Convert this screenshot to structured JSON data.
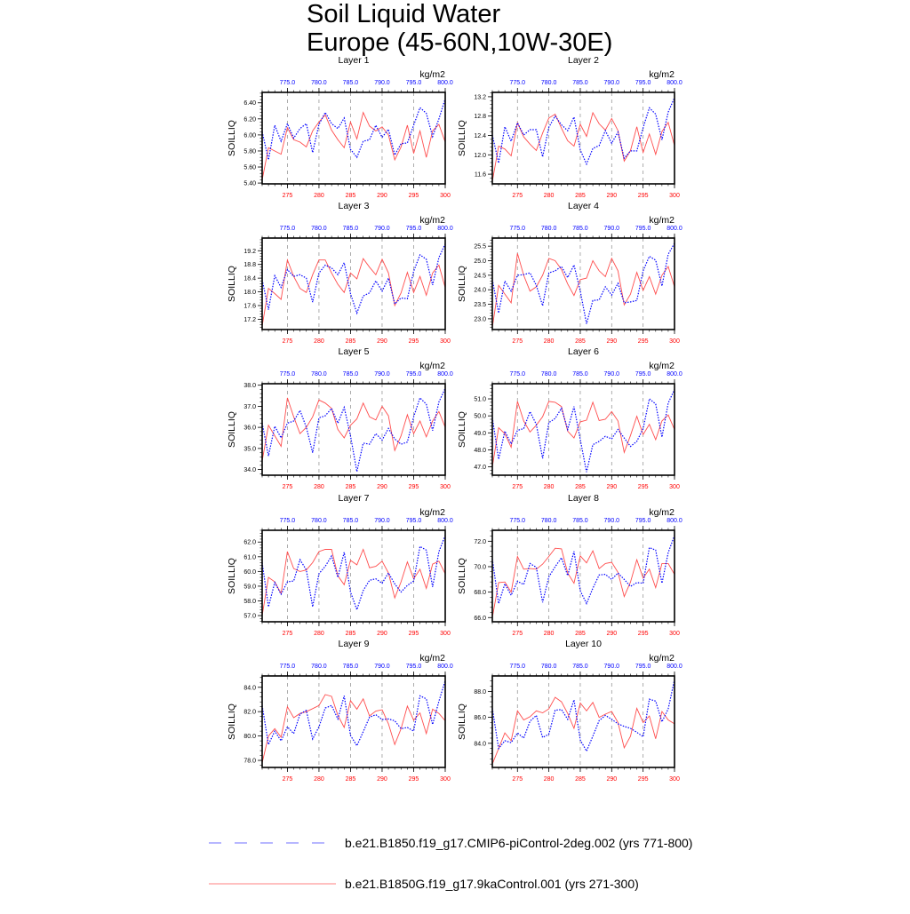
{
  "title": "Soil Liquid Water",
  "subtitle": "Europe (45-60N,10W-30E)",
  "colors": {
    "series_a": "#0000ff",
    "series_b": "#ff4d4d",
    "grid": "#999999",
    "axis": "#000000"
  },
  "legend": [
    {
      "label": "b.e21.B1850.f19_g17.CMIP6-piControl-2deg.002 (yrs 771-800)",
      "color": "#6f6fff",
      "style": "dashed"
    },
    {
      "label": "b.e21.B1850G.f19_g17.9kaControl.001 (yrs 271-300)",
      "color": "#ff8080",
      "style": "solid"
    }
  ],
  "chart_data": {
    "type": "line",
    "layout": "5 rows x 2 columns",
    "ylabel": "SOILLIQ",
    "units": "kg/m2",
    "x_bottom": {
      "range": [
        271,
        300
      ],
      "ticks": [
        "275",
        "280",
        "285",
        "290",
        "295",
        "300"
      ],
      "color": "#ff0000"
    },
    "x_top": {
      "range": [
        771,
        800
      ],
      "ticks": [
        "775.0",
        "780.0",
        "785.0",
        "790.0",
        "795.0",
        "800.0"
      ],
      "color": "#0000ff"
    },
    "grid": "vertical dashed at major x ticks",
    "panels": [
      {
        "title": "Layer 1",
        "ylim": [
          5.39,
          6.53
        ],
        "yticks": [
          "5.40",
          "5.60",
          "5.80",
          "6.00",
          "6.20",
          "6.40"
        ],
        "ytick_values": [
          5.4,
          5.6,
          5.8,
          6.0,
          6.2,
          6.4
        ],
        "red": [
          5.44,
          5.84,
          5.8,
          5.76,
          6.09,
          5.94,
          5.91,
          5.85,
          6.05,
          6.16,
          6.25,
          6.06,
          5.94,
          5.84,
          6.16,
          5.95,
          6.28,
          6.11,
          6.05,
          6.1,
          6.0,
          5.69,
          5.85,
          6.12,
          5.77,
          6.05,
          5.72,
          6.05,
          6.13,
          5.91
        ],
        "blue": [
          6.04,
          5.69,
          6.12,
          5.92,
          6.14,
          5.96,
          6.08,
          6.14,
          5.78,
          6.13,
          6.28,
          6.14,
          6.08,
          6.21,
          5.82,
          5.72,
          5.92,
          5.94,
          6.12,
          5.97,
          6.07,
          5.75,
          5.89,
          5.9,
          6.12,
          6.34,
          6.27,
          5.98,
          6.2,
          6.45
        ]
      },
      {
        "title": "Layer 2",
        "ylim": [
          11.4,
          13.29
        ],
        "yticks": [
          "11.6",
          "12.0",
          "12.4",
          "12.8",
          "13.2"
        ],
        "ytick_values": [
          11.6,
          12.0,
          12.4,
          12.8,
          13.2
        ],
        "red": [
          11.45,
          12.18,
          12.12,
          11.98,
          12.66,
          12.37,
          12.22,
          12.09,
          12.45,
          12.76,
          12.84,
          12.55,
          12.29,
          12.18,
          12.63,
          12.38,
          12.87,
          12.64,
          12.51,
          12.75,
          12.5,
          11.87,
          12.09,
          12.58,
          12.05,
          12.43,
          12.01,
          12.48,
          12.67,
          12.19
        ],
        "blue": [
          12.41,
          11.83,
          12.58,
          12.28,
          12.66,
          12.41,
          12.52,
          12.52,
          11.96,
          12.57,
          12.8,
          12.62,
          12.5,
          12.78,
          12.1,
          11.81,
          12.13,
          12.19,
          12.5,
          12.24,
          12.47,
          11.93,
          12.08,
          12.08,
          12.56,
          12.97,
          12.84,
          12.31,
          12.88,
          13.18
        ]
      },
      {
        "title": "Layer 3",
        "ylim": [
          16.9,
          19.57
        ],
        "yticks": [
          "17.2",
          "17.6",
          "18.0",
          "18.4",
          "18.8",
          "19.2"
        ],
        "ytick_values": [
          17.2,
          17.6,
          18.0,
          18.4,
          18.8,
          19.2
        ],
        "red": [
          17.0,
          18.1,
          17.95,
          17.78,
          18.93,
          18.45,
          18.1,
          17.98,
          18.5,
          18.93,
          18.93,
          18.55,
          18.22,
          17.98,
          18.55,
          18.38,
          18.97,
          18.72,
          18.5,
          18.95,
          18.55,
          17.6,
          17.97,
          18.57,
          17.98,
          18.45,
          17.9,
          18.55,
          18.78,
          18.12
        ],
        "blue": [
          18.35,
          17.48,
          18.47,
          18.13,
          18.65,
          18.45,
          18.5,
          18.4,
          17.7,
          18.55,
          18.78,
          18.7,
          18.5,
          18.85,
          17.95,
          17.38,
          17.88,
          17.97,
          18.32,
          18.02,
          18.4,
          17.65,
          17.82,
          17.8,
          18.6,
          19.08,
          18.95,
          18.2,
          19.0,
          19.4
        ]
      },
      {
        "title": "Layer 4",
        "ylim": [
          22.63,
          25.78
        ],
        "yticks": [
          "23.0",
          "23.5",
          "24.0",
          "24.5",
          "25.0",
          "25.5"
        ],
        "ytick_values": [
          23.0,
          23.5,
          24.0,
          24.5,
          25.0,
          25.5
        ],
        "red": [
          22.7,
          24.15,
          23.85,
          23.55,
          25.25,
          24.5,
          23.95,
          24.1,
          24.5,
          25.08,
          25.0,
          24.7,
          24.2,
          23.8,
          24.35,
          24.4,
          25.0,
          24.65,
          24.45,
          25.08,
          24.65,
          23.48,
          23.85,
          24.6,
          23.98,
          24.45,
          23.85,
          24.5,
          24.8,
          24.1
        ],
        "blue": [
          24.35,
          23.2,
          24.3,
          23.95,
          24.5,
          24.52,
          24.58,
          24.15,
          23.45,
          24.58,
          24.65,
          24.8,
          24.42,
          24.85,
          23.95,
          22.83,
          23.63,
          23.65,
          24.1,
          23.82,
          24.22,
          23.55,
          23.58,
          23.63,
          24.65,
          25.15,
          25.02,
          24.13,
          25.22,
          25.6
        ]
      },
      {
        "title": "Layer 5",
        "ylim": [
          33.73,
          38.07
        ],
        "yticks": [
          "34.0",
          "35.0",
          "36.0",
          "37.0",
          "38.0"
        ],
        "ytick_values": [
          34,
          35,
          36,
          37,
          38
        ],
        "red": [
          34.4,
          36.1,
          35.6,
          35.1,
          37.4,
          36.5,
          35.7,
          36.0,
          36.5,
          37.3,
          37.15,
          36.9,
          35.9,
          35.5,
          36.1,
          36.4,
          37.15,
          36.5,
          36.35,
          37.0,
          36.55,
          34.9,
          35.6,
          36.6,
          35.7,
          36.3,
          35.55,
          36.3,
          36.75,
          36.0
        ],
        "blue": [
          36.2,
          34.65,
          36.05,
          35.5,
          36.2,
          36.3,
          36.8,
          36.0,
          34.8,
          36.45,
          36.55,
          36.9,
          36.2,
          36.95,
          35.6,
          33.9,
          35.25,
          35.2,
          35.7,
          35.4,
          35.95,
          35.45,
          35.2,
          35.3,
          36.5,
          37.4,
          37.1,
          35.85,
          37.2,
          37.85
        ]
      },
      {
        "title": "Layer 6",
        "ylim": [
          46.51,
          51.89
        ],
        "yticks": [
          "47.0",
          "48.0",
          "49.0",
          "50.0",
          "51.0"
        ],
        "ytick_values": [
          47,
          48,
          49,
          50,
          51
        ],
        "red": [
          47.0,
          49.3,
          48.95,
          48.15,
          50.85,
          49.7,
          49.05,
          49.45,
          49.95,
          50.85,
          50.8,
          50.55,
          49.1,
          48.7,
          49.65,
          49.75,
          50.8,
          49.72,
          49.8,
          50.25,
          49.7,
          47.85,
          48.85,
          49.98,
          48.9,
          49.5,
          48.6,
          49.7,
          50.05,
          49.2
        ],
        "blue": [
          49.9,
          47.45,
          49.1,
          48.35,
          49.15,
          49.25,
          50.25,
          49.5,
          47.5,
          49.6,
          49.85,
          50.45,
          49.2,
          50.55,
          48.6,
          46.7,
          48.3,
          48.5,
          48.8,
          48.65,
          49.2,
          48.7,
          48.2,
          48.5,
          49.25,
          51.0,
          50.7,
          48.75,
          50.75,
          51.55
        ]
      },
      {
        "title": "Layer 7",
        "ylim": [
          56.58,
          62.8
        ],
        "yticks": [
          "57.0",
          "58.0",
          "59.0",
          "60.0",
          "61.0",
          "62.0"
        ],
        "ytick_values": [
          57,
          58,
          59,
          60,
          61,
          62
        ],
        "red": [
          57.0,
          59.6,
          59.3,
          58.5,
          61.35,
          60.2,
          60.0,
          60.1,
          60.6,
          61.35,
          61.5,
          61.5,
          59.7,
          59.1,
          60.75,
          60.45,
          61.5,
          60.25,
          60.35,
          60.7,
          59.9,
          58.2,
          59.3,
          60.65,
          59.5,
          60.15,
          58.85,
          60.5,
          60.7,
          59.85
        ],
        "blue": [
          60.6,
          57.6,
          59.25,
          58.45,
          59.3,
          59.35,
          60.8,
          60.1,
          57.6,
          59.85,
          60.35,
          61.05,
          59.6,
          61.3,
          58.6,
          57.4,
          58.7,
          59.4,
          59.5,
          59.2,
          59.9,
          59.15,
          58.6,
          59.05,
          59.35,
          61.7,
          61.45,
          58.95,
          61.35,
          62.45
        ]
      },
      {
        "title": "Layer 8",
        "ylim": [
          65.67,
          72.86
        ],
        "yticks": [
          "66.0",
          "68.0",
          "70.0",
          "72.0"
        ],
        "ytick_values": [
          66,
          68,
          70,
          72
        ],
        "red": [
          66.0,
          68.75,
          68.8,
          68.0,
          70.8,
          69.8,
          69.85,
          69.8,
          70.2,
          70.8,
          71.45,
          71.4,
          69.5,
          68.7,
          70.85,
          70.3,
          71.25,
          69.85,
          70.25,
          70.35,
          69.55,
          67.65,
          68.8,
          70.55,
          69.1,
          69.8,
          68.35,
          70.25,
          70.25,
          69.4
        ],
        "blue": [
          70.6,
          67.1,
          68.65,
          67.75,
          68.85,
          68.6,
          70.25,
          69.95,
          67.2,
          69.2,
          70.0,
          70.7,
          69.3,
          71.2,
          68.1,
          67.1,
          68.3,
          69.35,
          69.4,
          69.0,
          69.5,
          69.0,
          68.45,
          68.75,
          68.7,
          71.5,
          71.3,
          68.7,
          71.1,
          72.45
        ]
      },
      {
        "title": "Layer 9",
        "ylim": [
          77.42,
          84.93
        ],
        "yticks": [
          "78.0",
          "80.0",
          "82.0",
          "84.0"
        ],
        "ytick_values": [
          78,
          80,
          82,
          84
        ],
        "red": [
          77.8,
          80.0,
          80.6,
          79.9,
          82.4,
          81.5,
          81.85,
          82.0,
          82.25,
          82.5,
          83.4,
          83.25,
          81.7,
          80.7,
          82.9,
          82.2,
          83.05,
          81.65,
          82.05,
          82.15,
          81.0,
          79.3,
          80.6,
          82.45,
          81.3,
          81.9,
          80.2,
          82.2,
          81.85,
          81.25
        ],
        "blue": [
          82.5,
          79.3,
          80.4,
          79.6,
          80.75,
          80.2,
          81.8,
          82.1,
          79.75,
          80.75,
          82.3,
          82.5,
          81.4,
          83.3,
          80.05,
          79.2,
          80.35,
          81.55,
          81.75,
          81.35,
          81.4,
          81.25,
          80.6,
          80.7,
          80.4,
          83.3,
          83.05,
          80.95,
          82.85,
          84.55
        ]
      },
      {
        "title": "Layer 10",
        "ylim": [
          82.14,
          89.19
        ],
        "yticks": [
          "84.0",
          "86.0",
          "88.0"
        ],
        "ytick_values": [
          84,
          86,
          88
        ],
        "red": [
          82.4,
          83.6,
          84.8,
          84.2,
          86.5,
          85.8,
          86.05,
          86.5,
          86.35,
          86.65,
          87.55,
          87.2,
          86.3,
          85.15,
          87.1,
          86.5,
          87.15,
          86.0,
          86.25,
          86.45,
          85.6,
          83.65,
          84.55,
          86.7,
          85.6,
          86.1,
          84.35,
          86.45,
          85.8,
          85.5
        ],
        "blue": [
          86.7,
          83.6,
          84.2,
          84.05,
          84.8,
          84.4,
          85.7,
          86.15,
          84.45,
          84.7,
          86.55,
          86.6,
          85.85,
          87.35,
          84.25,
          83.4,
          84.55,
          85.75,
          86.15,
          85.85,
          85.5,
          85.3,
          85.15,
          84.85,
          84.5,
          87.4,
          87.25,
          85.65,
          86.65,
          88.9
        ]
      }
    ]
  }
}
